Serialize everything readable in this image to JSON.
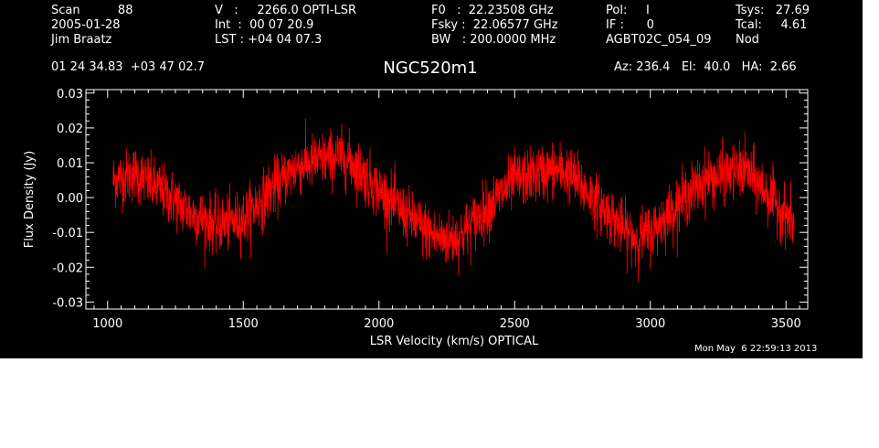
{
  "header": {
    "col1": [
      "Scan          88",
      "2005-01-28",
      "Jim Braatz"
    ],
    "col2": [
      "V   :     2266.0 OPTI-LSR",
      "Int  :  00 07 20.9",
      "LST : +04 04 07.3"
    ],
    "col3": [
      "F0   :  22.23508 GHz",
      "Fsky :  22.06577 GHz",
      "BW   : 200.0000 MHz"
    ],
    "col4": [
      "Pol:     I",
      "IF :      0",
      "AGBT02C_054_09"
    ],
    "col5": [
      "Tsys:   27.69",
      "Tcal:     4.61",
      "Nod"
    ],
    "coords": "01 24 34.83  +03 47 02.7",
    "source": "NGC520m1",
    "azelha": "Az: 236.4   El:  40.0   HA:  2.66",
    "timestamp": "Mon May  6 22:59:13 2013"
  },
  "colors": {
    "background": "#000000",
    "foreground": "#ffffff",
    "series": "#ff0000"
  },
  "chart_data": {
    "type": "line",
    "title": "NGC520m1",
    "xlabel": "LSR Velocity (km/s) OPTICAL",
    "ylabel": "Flux Density (Jy)",
    "xlim": [
      920,
      3580
    ],
    "ylim": [
      -0.032,
      0.031
    ],
    "xticks": [
      1000,
      1500,
      2000,
      2500,
      3000,
      3500
    ],
    "yticks": [
      -0.03,
      -0.02,
      -0.01,
      0.0,
      0.01,
      0.02,
      0.03
    ],
    "xtick_labels": [
      "1000",
      "1500",
      "2000",
      "2500",
      "3000",
      "3500"
    ],
    "ytick_labels": [
      "-0.03",
      "-0.02",
      "-0.01",
      "0.00",
      "0.01",
      "0.02",
      "0.03"
    ],
    "grid": false,
    "series": [
      {
        "color": "#ff0000",
        "x": [
          1020,
          1100,
          1200,
          1300,
          1400,
          1500,
          1600,
          1700,
          1800,
          1850,
          1900,
          2000,
          2100,
          2200,
          2250,
          2300,
          2400,
          2500,
          2600,
          2650,
          2700,
          2800,
          2900,
          2950,
          3000,
          3100,
          3200,
          3300,
          3350,
          3400,
          3500,
          3530
        ],
        "y": [
          0.005,
          0.007,
          0.002,
          -0.004,
          -0.008,
          -0.006,
          0.002,
          0.009,
          0.011,
          0.012,
          0.01,
          0.002,
          -0.005,
          -0.011,
          -0.012,
          -0.011,
          -0.003,
          0.005,
          0.007,
          0.008,
          0.007,
          -0.001,
          -0.009,
          -0.012,
          -0.01,
          -0.002,
          0.005,
          0.007,
          0.008,
          0.004,
          -0.005,
          -0.008
        ],
        "noise_rms_approx": 0.004
      }
    ]
  }
}
